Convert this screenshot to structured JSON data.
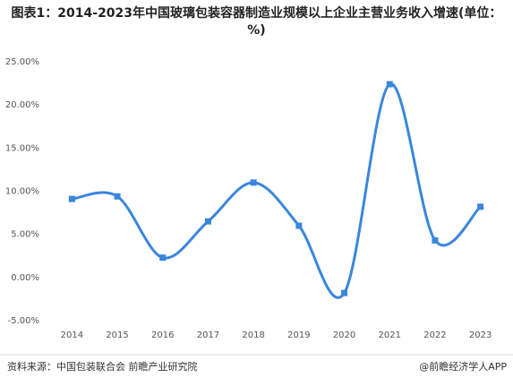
{
  "chart_data": {
    "type": "line",
    "title": "图表1：2014-2023年中国玻璃包装容器制造业规模以上企业主营业务收入增速(单位：%)",
    "categories": [
      "2014",
      "2015",
      "2016",
      "2017",
      "2018",
      "2019",
      "2020",
      "2021",
      "2022",
      "2023"
    ],
    "series": [
      {
        "name": "增速",
        "color": "#3a86dc",
        "values": [
          9.1,
          9.4,
          2.3,
          6.5,
          11.0,
          6.0,
          -1.8,
          22.4,
          4.3,
          8.2
        ]
      }
    ],
    "ylim": [
      -5,
      25
    ],
    "yticks": [
      {
        "value": -5,
        "label": "-5.00%"
      },
      {
        "value": 0,
        "label": "0.00%"
      },
      {
        "value": 5,
        "label": "5.00%"
      },
      {
        "value": 10,
        "label": "10.00%"
      },
      {
        "value": 15,
        "label": "15.00%"
      },
      {
        "value": 20,
        "label": "20.00%"
      },
      {
        "value": 25,
        "label": "25.00%"
      }
    ],
    "source": "资料来源：中国包装联合会 前瞻产业研究院",
    "credit": "@前瞻经济学人APP"
  }
}
